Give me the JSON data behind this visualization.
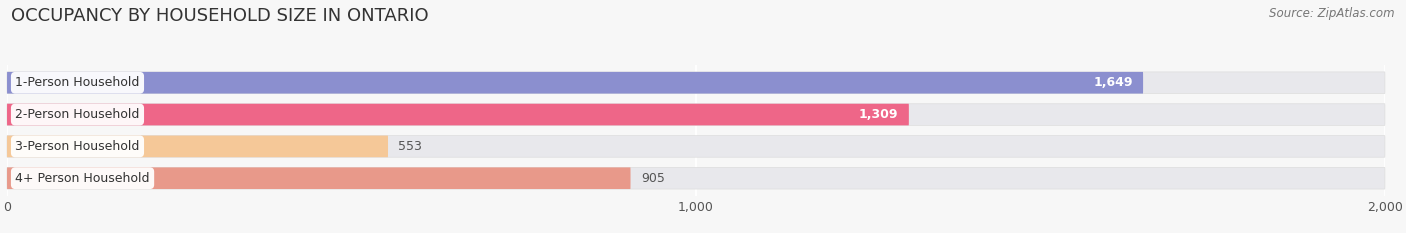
{
  "title": "OCCUPANCY BY HOUSEHOLD SIZE IN ONTARIO",
  "source": "Source: ZipAtlas.com",
  "categories": [
    "1-Person Household",
    "2-Person Household",
    "3-Person Household",
    "4+ Person Household"
  ],
  "values": [
    1649,
    1309,
    553,
    905
  ],
  "bar_colors": [
    "#8b8fcf",
    "#ee6688",
    "#f5c898",
    "#e8998a"
  ],
  "value_label_colors": [
    "white",
    "white",
    "#666666",
    "#666666"
  ],
  "xlim": [
    0,
    2000
  ],
  "xticks": [
    0,
    1000,
    2000
  ],
  "background_color": "#f7f7f7",
  "bar_bg_color": "#e8e8ec",
  "title_fontsize": 13,
  "source_fontsize": 8.5,
  "bar_label_fontsize": 9,
  "category_fontsize": 9
}
